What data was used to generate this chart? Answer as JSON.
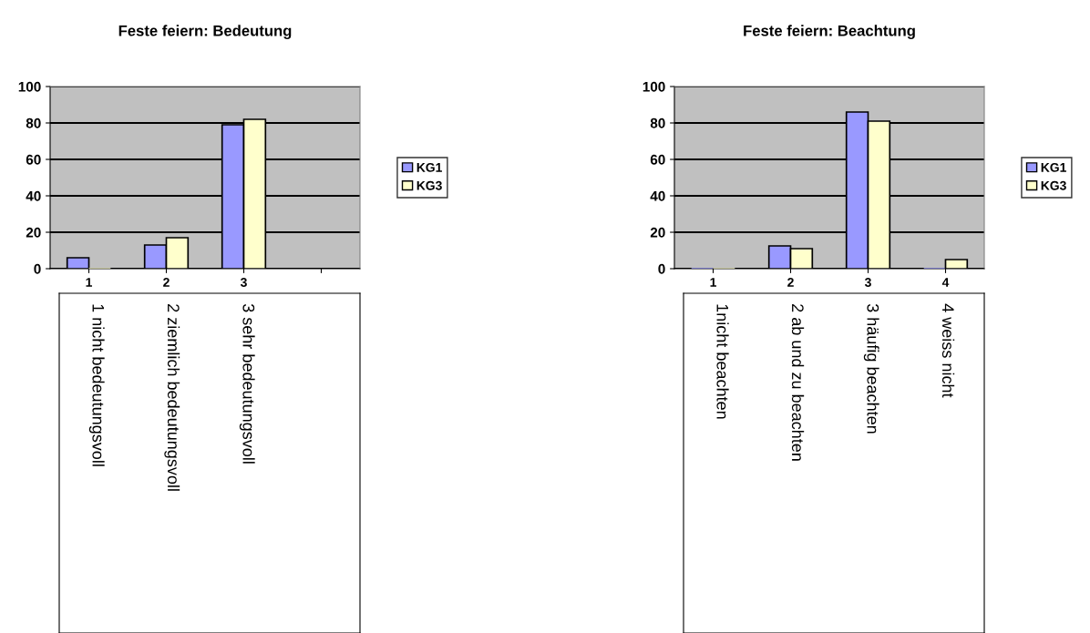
{
  "chart_data": [
    {
      "type": "bar",
      "title": "Feste feiern: Bedeutung",
      "categories": [
        "1",
        "2",
        "3",
        null
      ],
      "series": [
        {
          "name": "KG1",
          "color": "#9999ff",
          "values": [
            6,
            13,
            79,
            null
          ]
        },
        {
          "name": "KG3",
          "color": "#ffffcc",
          "values": [
            0,
            17,
            82,
            null
          ]
        }
      ],
      "ylim": [
        0,
        100
      ],
      "yticks": [
        0,
        20,
        40,
        60,
        80,
        100
      ],
      "grid": "y",
      "legend": "right",
      "annotations": [
        "1 nicht bedeutungsvoll",
        "2 ziemlich bedeutungsvoll",
        "3 sehr bedeutungsvoll"
      ]
    },
    {
      "type": "bar",
      "title": "Feste feiern: Beachtung",
      "categories": [
        "1",
        "2",
        "3",
        "4"
      ],
      "series": [
        {
          "name": "KG1",
          "color": "#9999ff",
          "values": [
            0,
            12.5,
            86,
            0
          ]
        },
        {
          "name": "KG3",
          "color": "#ffffcc",
          "values": [
            0,
            11,
            81,
            5
          ]
        }
      ],
      "ylim": [
        0,
        100
      ],
      "yticks": [
        0,
        20,
        40,
        60,
        80,
        100
      ],
      "grid": "y",
      "legend": "right",
      "annotations": [
        "1nicht beachten",
        "2 ab und zu beachten",
        "3 häufig beachten",
        "4 weiss nicht"
      ]
    }
  ]
}
